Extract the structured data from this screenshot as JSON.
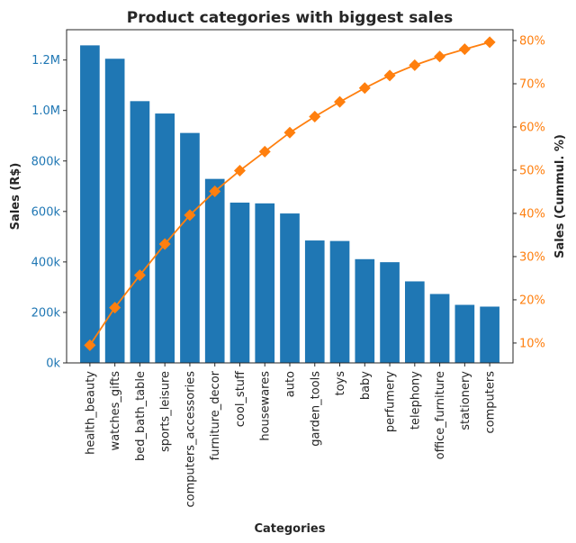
{
  "chart_data": {
    "type": "bar",
    "title": "Product categories with biggest sales",
    "xlabel": "Categories",
    "ylabel": "Sales (R$)",
    "y2label": "Sales (Cummul. %)",
    "categories": [
      "health_beauty",
      "watches_gifts",
      "bed_bath_table",
      "sports_leisure",
      "computers_accessories",
      "furniture_decor",
      "cool_stuff",
      "housewares",
      "auto",
      "garden_tools",
      "toys",
      "baby",
      "perfumery",
      "telephony",
      "office_furniture",
      "stationery",
      "computers"
    ],
    "series": [
      {
        "type": "bar",
        "axis": "left",
        "color": "#1f77b4",
        "values": [
          1258000,
          1205000,
          1037000,
          988000,
          911000,
          729000,
          635000,
          632000,
          592000,
          485000,
          483000,
          411000,
          399000,
          323000,
          273000,
          230000,
          223000
        ]
      },
      {
        "type": "line",
        "axis": "right",
        "marker": "diamond",
        "color": "#ff7f0e",
        "values": [
          9.5,
          18.2,
          25.7,
          32.9,
          39.6,
          45.1,
          49.9,
          54.3,
          58.7,
          62.4,
          65.8,
          69.0,
          71.9,
          74.3,
          76.3,
          78.0,
          79.6
        ]
      }
    ],
    "ylim": [
      0,
      1320000
    ],
    "yticks": [
      0,
      200000,
      400000,
      600000,
      800000,
      1000000,
      1200000
    ],
    "ytick_labels": [
      "0k",
      "200k",
      "400k",
      "600k",
      "800k",
      "1.0M",
      "1.2M"
    ],
    "y2lim": [
      5.4,
      82.5
    ],
    "y2ticks": [
      10,
      20,
      30,
      40,
      50,
      60,
      70,
      80
    ],
    "y2tick_labels": [
      "10%",
      "20%",
      "30%",
      "40%",
      "50%",
      "60%",
      "70%",
      "80%"
    ],
    "left_axis_color": "#1f77b4",
    "right_axis_color": "#ff7f0e",
    "grid": false
  }
}
